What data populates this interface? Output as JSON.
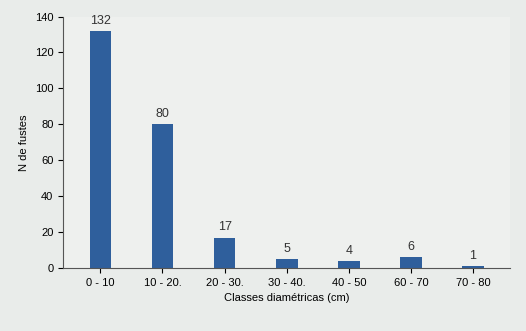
{
  "chart_data": {
    "type": "bar",
    "x_label": "Classes diamétricas (cm)",
    "y_label": "N de fustes",
    "categories": [
      "0 - 10",
      "10 - 20.",
      "20 - 30.",
      "30 - 40.",
      "40 - 50",
      "60 - 70",
      "70 - 80"
    ],
    "values": [
      132,
      80,
      17,
      5,
      4,
      6,
      1
    ],
    "color": "#2f5f9c",
    "ylim": [
      0,
      140
    ],
    "yticks": [
      0,
      20,
      40,
      60,
      80,
      100,
      120,
      140
    ],
    "data_labels": true,
    "grid": false
  }
}
